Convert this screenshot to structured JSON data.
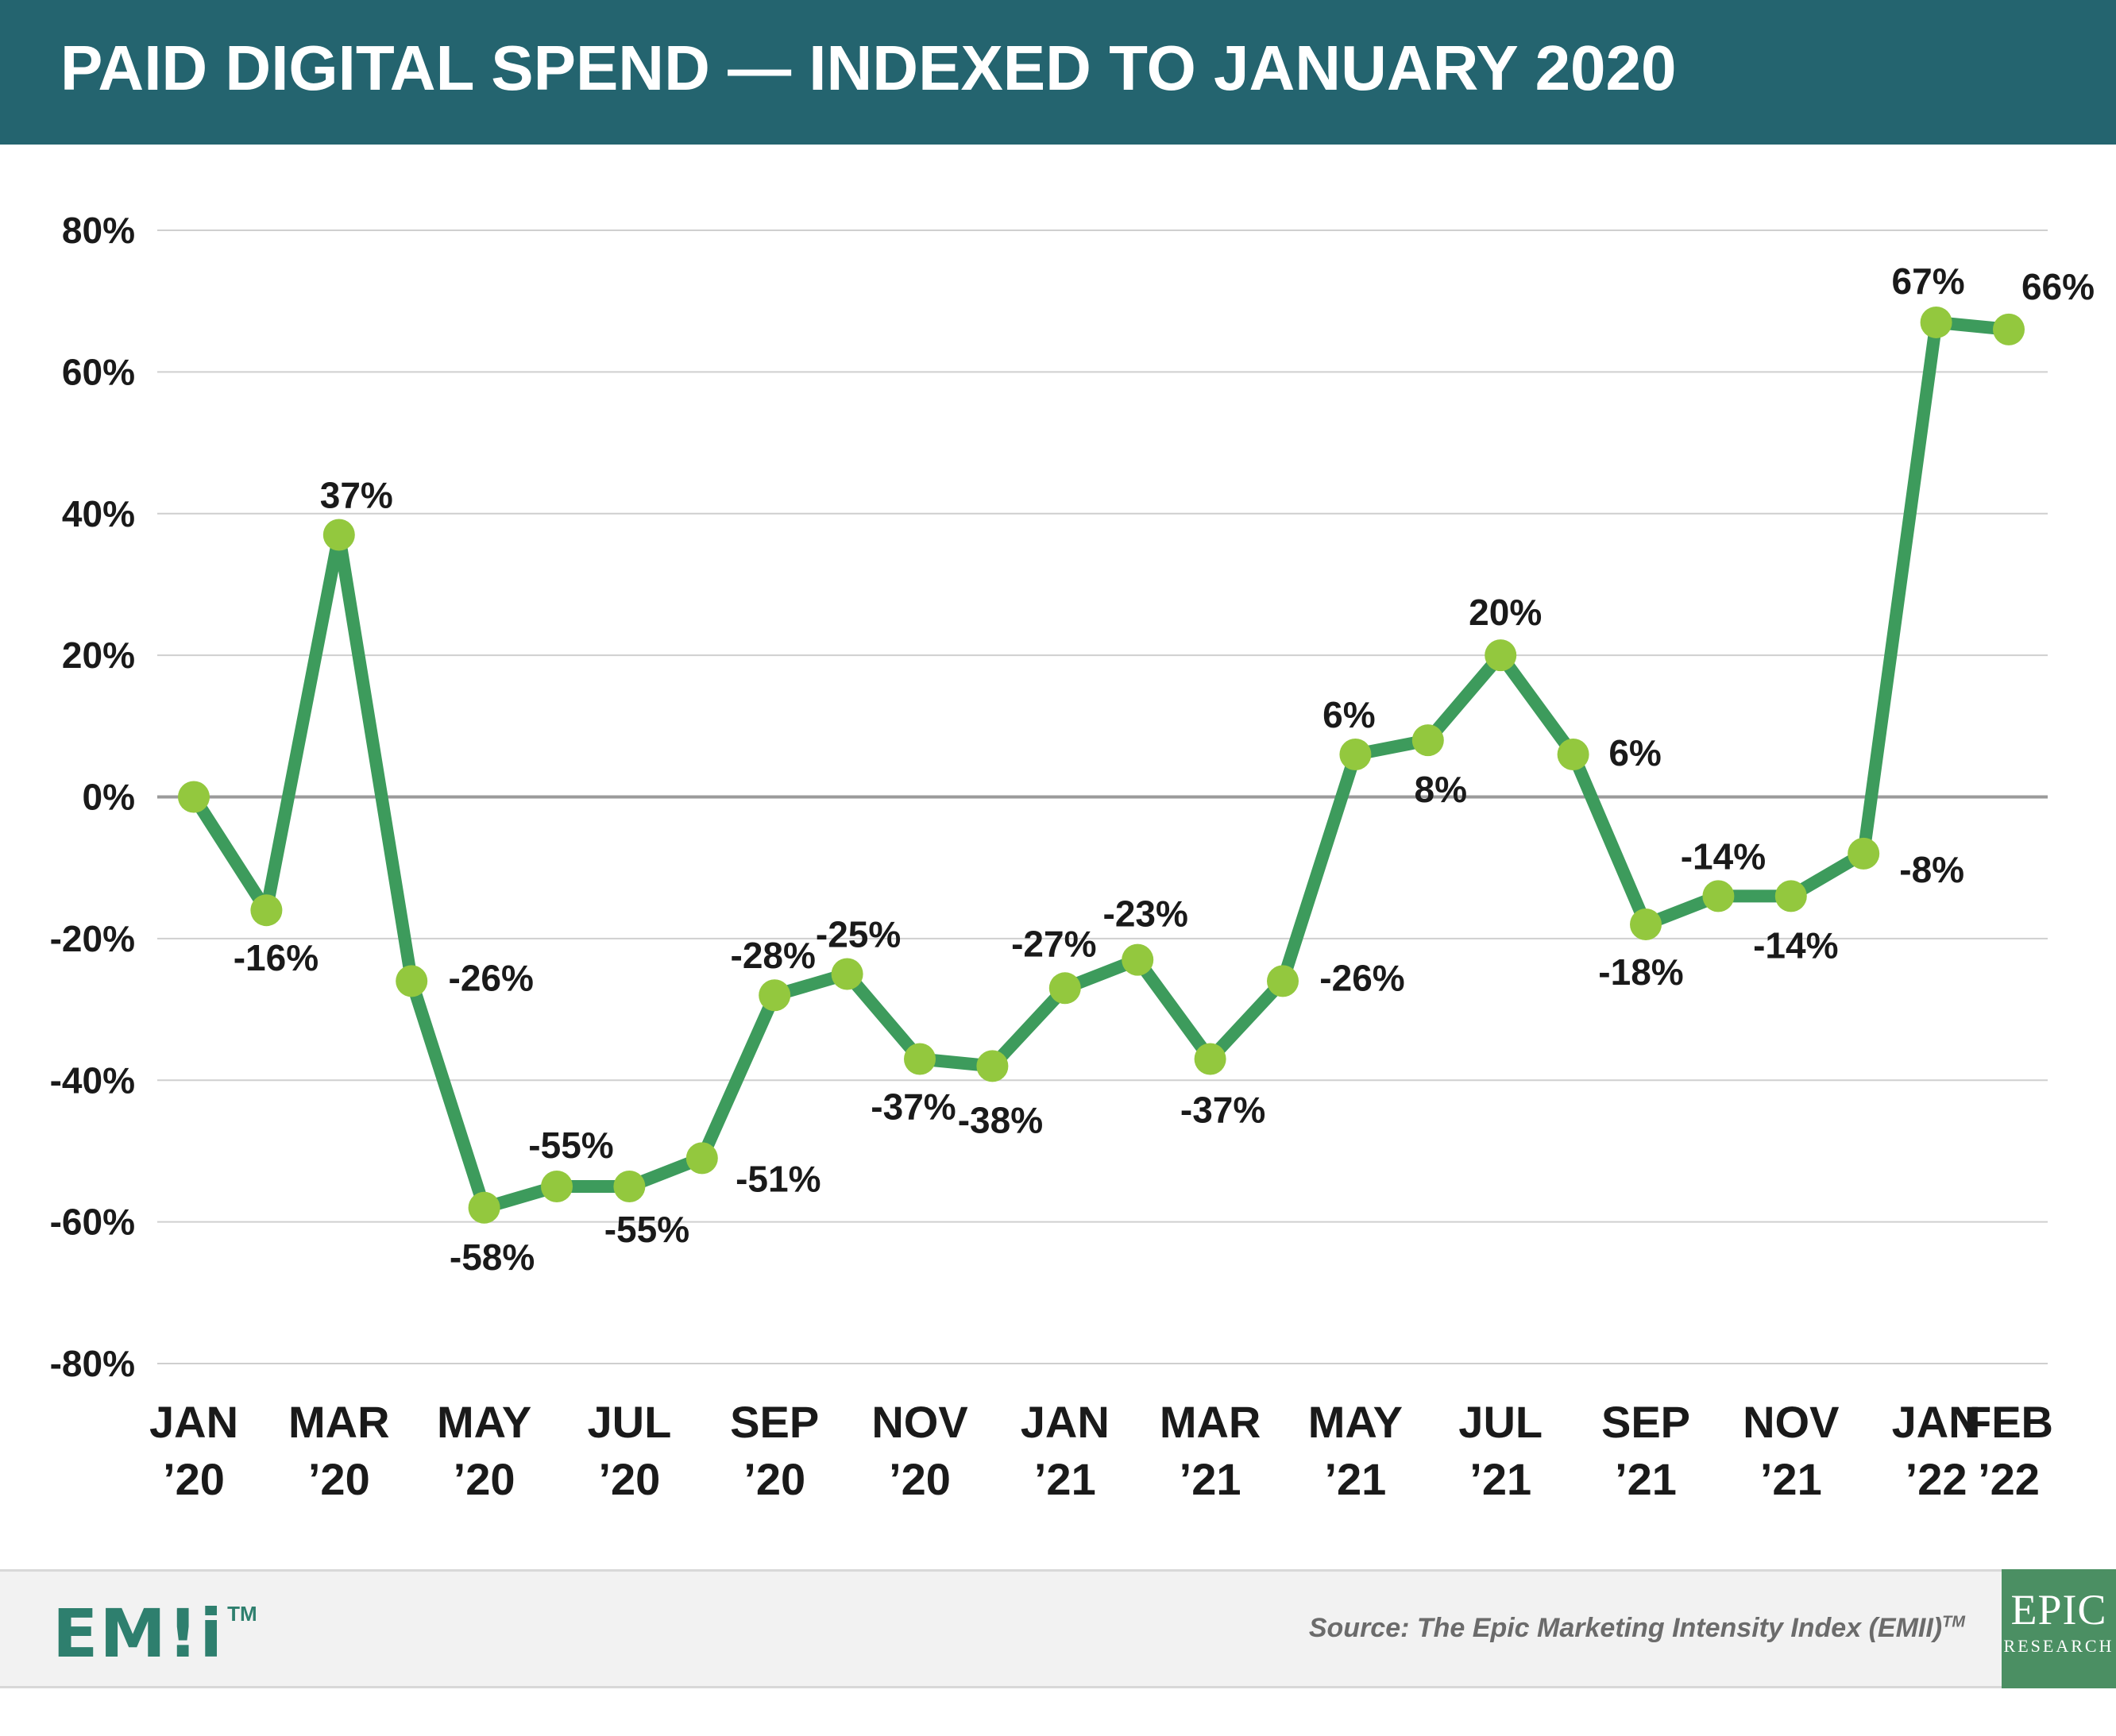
{
  "title": "PAID DIGITAL SPEND — INDEXED TO JANUARY 2020",
  "colors": {
    "header_bg": "#24646f",
    "line": "#3d9b5c",
    "marker": "#93c83e",
    "grid": "#cfcfcf",
    "zero_line": "#9a9a9a",
    "text": "#1a1a1a"
  },
  "chart_data": {
    "type": "line",
    "title": "PAID DIGITAL SPEND — INDEXED TO JANUARY 2020",
    "xlabel": "",
    "ylabel": "",
    "ylim": [
      -80,
      80
    ],
    "yticks": [
      80,
      60,
      40,
      20,
      0,
      -20,
      -40,
      -60,
      -80
    ],
    "ytick_labels": [
      "80%",
      "60%",
      "40%",
      "20%",
      "0%",
      "-20%",
      "-40%",
      "-60%",
      "-80%"
    ],
    "grid": true,
    "legend": "none",
    "x": [
      "Jan 2020",
      "Feb 2020",
      "Mar 2020",
      "Apr 2020",
      "May 2020",
      "Jun 2020",
      "Jul 2020",
      "Aug 2020",
      "Sep 2020",
      "Oct 2020",
      "Nov 2020",
      "Dec 2020",
      "Jan 2021",
      "Feb 2021",
      "Mar 2021",
      "Apr 2021",
      "May 2021",
      "Jun 2021",
      "Jul 2021",
      "Aug 2021",
      "Sep 2021",
      "Oct 2021",
      "Nov 2021",
      "Dec 2021",
      "Jan 2022",
      "Feb 2022"
    ],
    "values": [
      0,
      -16,
      37,
      -26,
      -58,
      -55,
      -55,
      -51,
      -28,
      -25,
      -37,
      -38,
      -27,
      -23,
      -37,
      -26,
      6,
      8,
      20,
      6,
      -18,
      -14,
      -14,
      -8,
      67,
      66
    ],
    "data_labels": [
      null,
      "-16%",
      "37%",
      "-26%",
      "-58%",
      "-55%",
      "-55%",
      "-51%",
      "-28%",
      "-25%",
      "-37%",
      "-38%",
      "-27%",
      "-23%",
      "-37%",
      "-26%",
      "6%",
      "8%",
      "20%",
      "6%",
      "-18%",
      "-14%",
      "-14%",
      "-8%",
      "67%",
      "66%"
    ],
    "tick_labels": [
      {
        "index": 0,
        "line1": "JAN",
        "line2": "’20"
      },
      {
        "index": 2,
        "line1": "MAR",
        "line2": "’20"
      },
      {
        "index": 4,
        "line1": "MAY",
        "line2": "’20"
      },
      {
        "index": 6,
        "line1": "JUL",
        "line2": "’20"
      },
      {
        "index": 8,
        "line1": "SEP",
        "line2": "’20"
      },
      {
        "index": 10,
        "line1": "NOV",
        "line2": "’20"
      },
      {
        "index": 12,
        "line1": "JAN",
        "line2": "’21"
      },
      {
        "index": 14,
        "line1": "MAR",
        "line2": "’21"
      },
      {
        "index": 16,
        "line1": "MAY",
        "line2": "’21"
      },
      {
        "index": 18,
        "line1": "JUL",
        "line2": "’21"
      },
      {
        "index": 20,
        "line1": "SEP",
        "line2": "’21"
      },
      {
        "index": 22,
        "line1": "NOV",
        "line2": "’21"
      },
      {
        "index": 24,
        "line1": "JAN",
        "line2": "’22"
      },
      {
        "index": 25,
        "line1": "FEB",
        "line2": "’22"
      }
    ]
  },
  "footer": {
    "emii_logo": "EM!i",
    "emii_tm": "TM",
    "source": "Source: The Epic Marketing Intensity Index (EMII)",
    "source_tm": "TM",
    "epic_logo_line1": "EPIC",
    "epic_logo_line2": "RESEARCH"
  }
}
